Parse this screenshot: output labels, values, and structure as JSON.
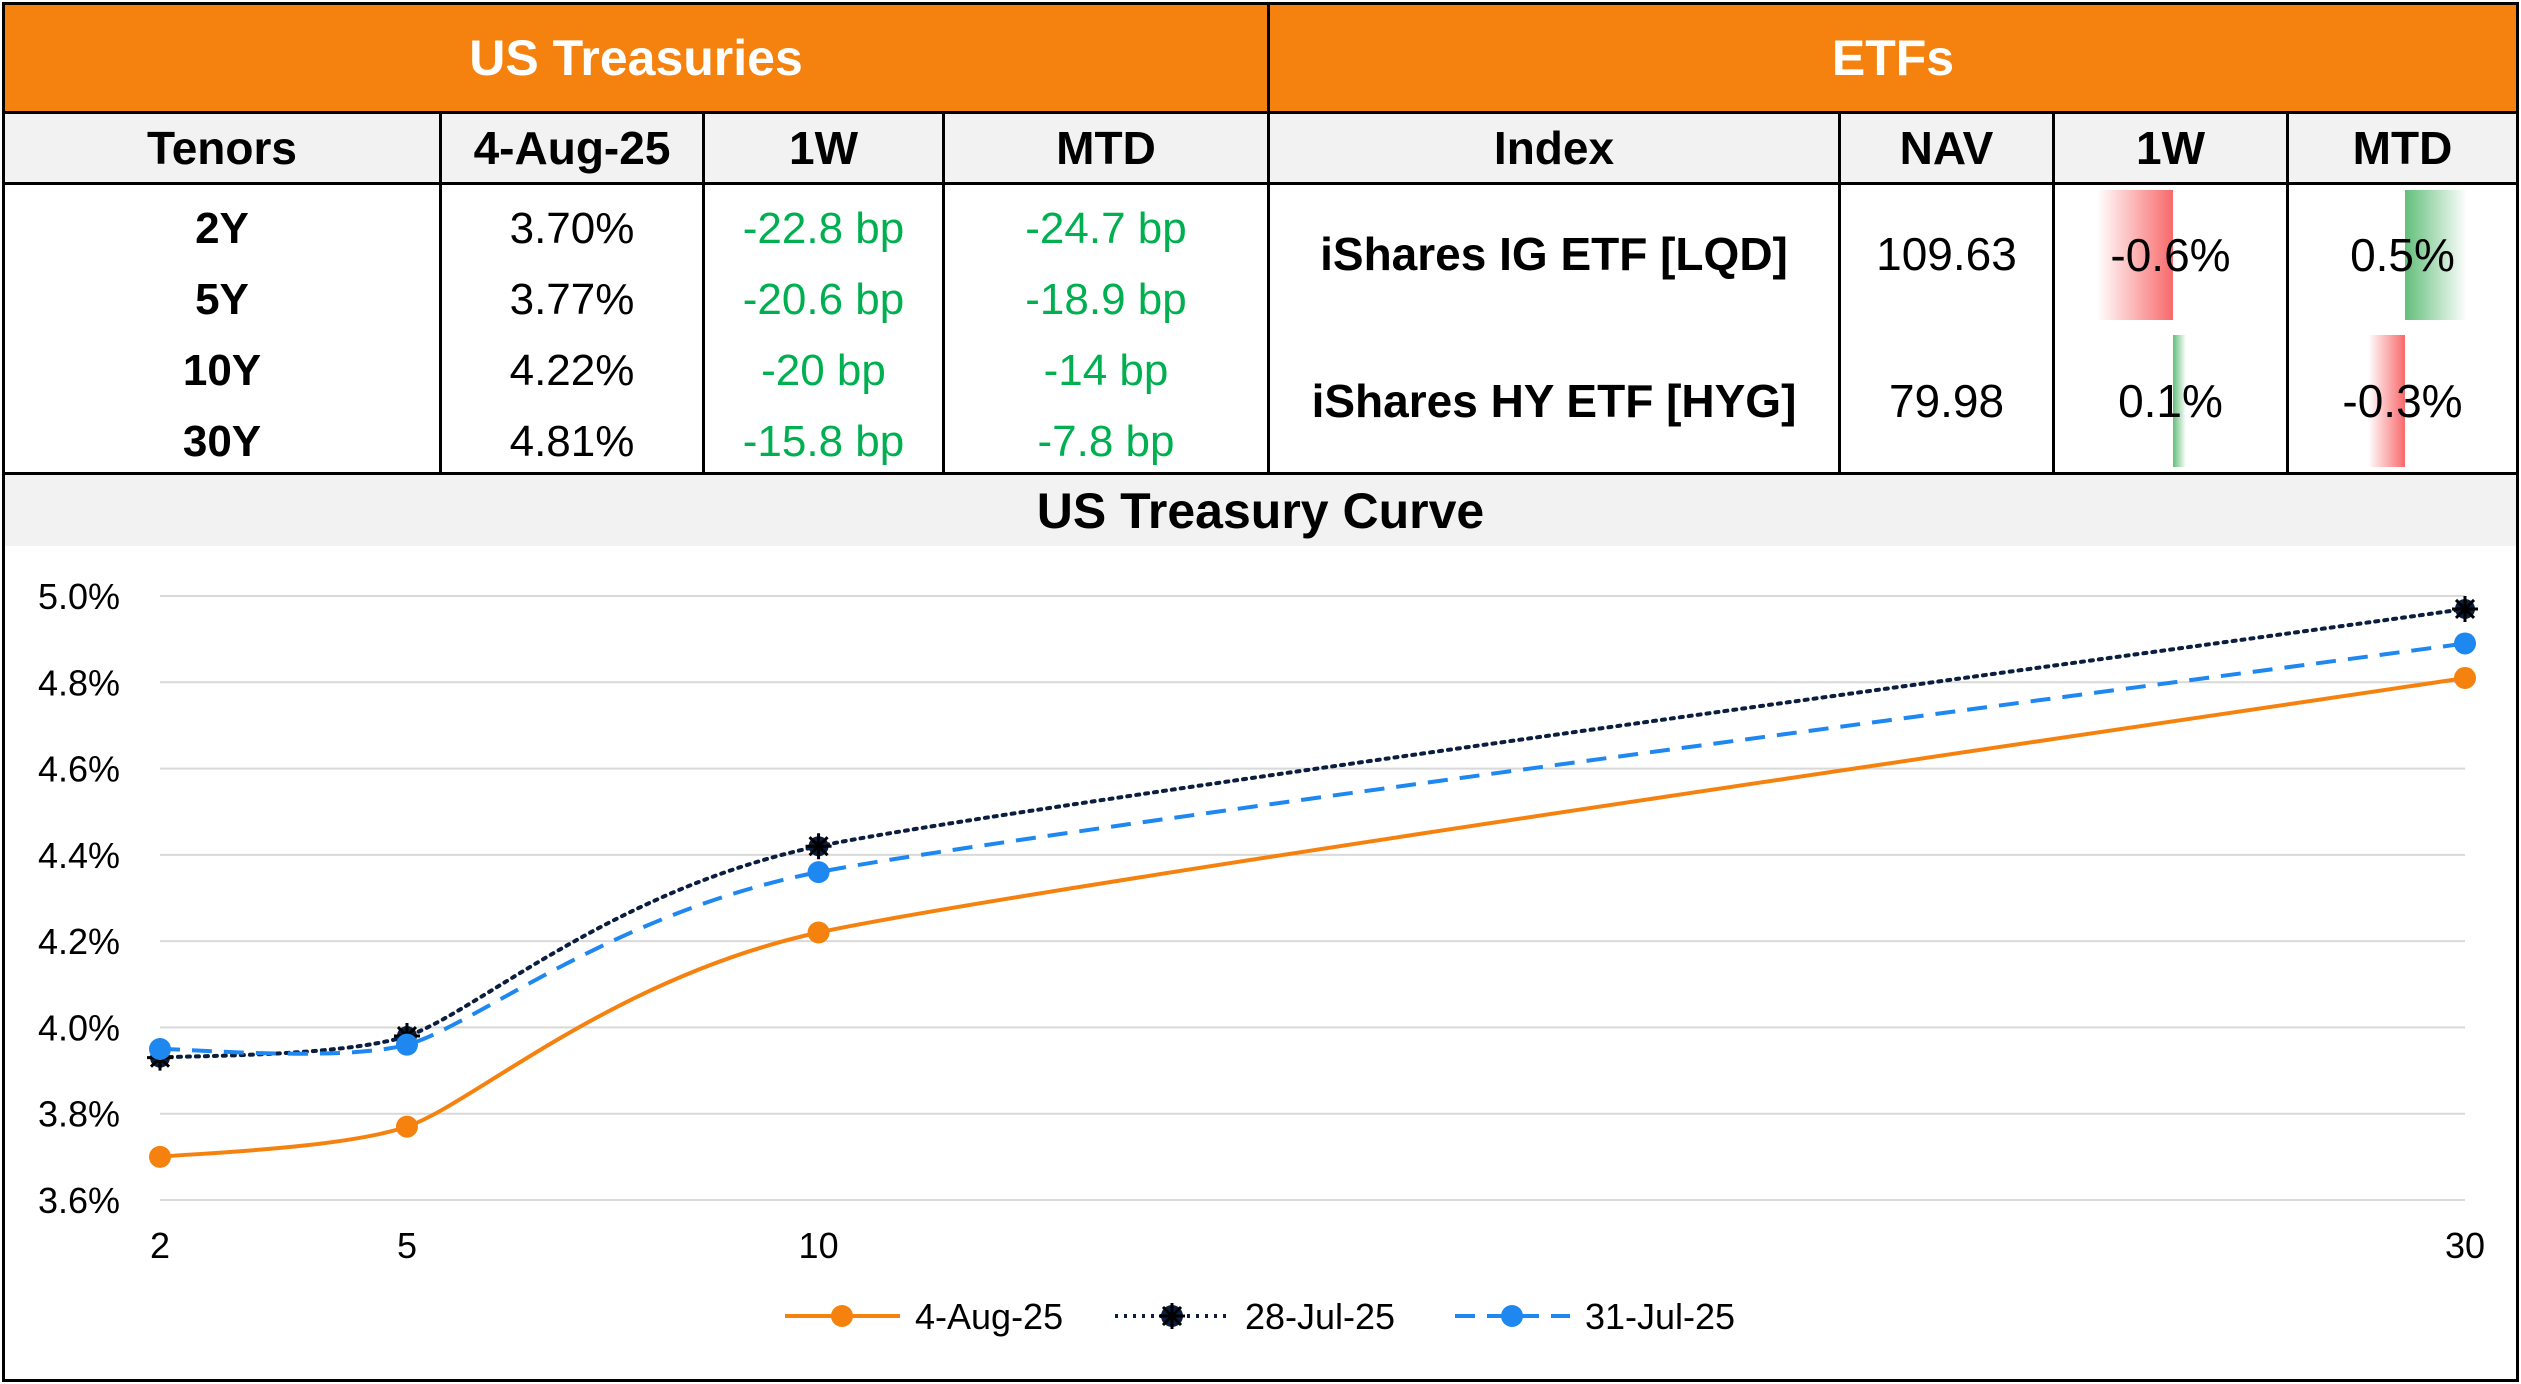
{
  "treasuries": {
    "title": "US Treasuries",
    "headers": [
      "Tenors",
      "4-Aug-25",
      "1W",
      "MTD"
    ],
    "rows": [
      {
        "tenor": "2Y",
        "yield": "3.70%",
        "w1": "-22.8 bp",
        "mtd": "-24.7 bp"
      },
      {
        "tenor": "5Y",
        "yield": "3.77%",
        "w1": "-20.6 bp",
        "mtd": "-18.9 bp"
      },
      {
        "tenor": "10Y",
        "yield": "4.22%",
        "w1": "-20 bp",
        "mtd": "-14 bp"
      },
      {
        "tenor": "30Y",
        "yield": "4.81%",
        "w1": "-15.8 bp",
        "mtd": "-7.8 bp"
      }
    ],
    "positive_color": "#00B050"
  },
  "etfs": {
    "title": "ETFs",
    "headers": [
      "Index",
      "NAV",
      "1W",
      "MTD"
    ],
    "rows": [
      {
        "index": "iShares IG ETF [LQD]",
        "nav": "109.63",
        "w1": "-0.6%",
        "w1_value": -0.6,
        "mtd": "0.5%",
        "mtd_value": 0.5
      },
      {
        "index": "iShares HY ETF [HYG]",
        "nav": "79.98",
        "w1": "0.1%",
        "w1_value": 0.1,
        "mtd": "-0.3%",
        "mtd_value": -0.3
      }
    ],
    "negative_bar_color": "#F8696B",
    "positive_bar_color": "#63BE7B"
  },
  "header_color": "#F5820F",
  "curve_title": "US Treasury Curve",
  "chart_data": {
    "type": "line",
    "x": [
      2,
      5,
      10,
      30
    ],
    "xticks": [
      "2",
      "5",
      "10",
      "30"
    ],
    "yticks": [
      "3.6%",
      "3.8%",
      "4.0%",
      "4.2%",
      "4.4%",
      "4.6%",
      "4.8%",
      "5.0%"
    ],
    "ylim": [
      3.6,
      5.0
    ],
    "grid": true,
    "legend": "bottom",
    "series": [
      {
        "name": "4-Aug-25",
        "values": [
          3.7,
          3.77,
          4.22,
          4.81
        ],
        "color": "#F5820F",
        "style": "solid"
      },
      {
        "name": "28-Jul-25",
        "values": [
          3.93,
          3.98,
          4.42,
          4.97
        ],
        "color": "#0B1E3F",
        "style": "dotted"
      },
      {
        "name": "31-Jul-25",
        "values": [
          3.95,
          3.96,
          4.36,
          4.89
        ],
        "color": "#1E88F0",
        "style": "dashed"
      }
    ]
  }
}
